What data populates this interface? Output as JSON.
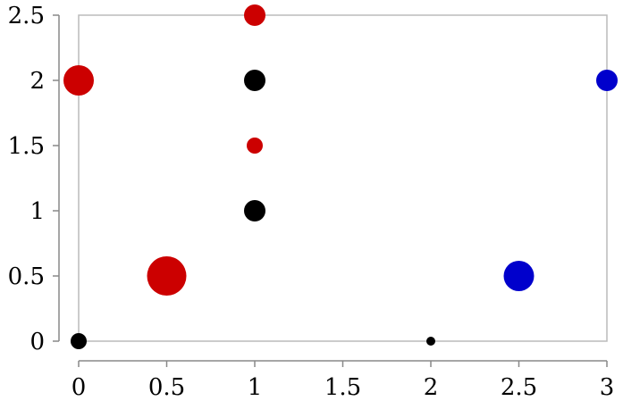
{
  "chart_data": {
    "type": "scatter",
    "title": "",
    "xlabel": "",
    "ylabel": "",
    "xlim": [
      0,
      3
    ],
    "ylim": [
      0,
      2.5
    ],
    "xticks": [
      0,
      0.5,
      1,
      1.5,
      2,
      2.5,
      3
    ],
    "yticks": [
      0,
      0.5,
      1,
      1.5,
      2,
      2.5
    ],
    "xtick_labels": [
      "0",
      "0.5",
      "1",
      "1.5",
      "2",
      "2.5",
      "3"
    ],
    "ytick_labels": [
      "0",
      "0.5",
      "1",
      "1.5",
      "2",
      "2.5"
    ],
    "grid": false,
    "colors": {
      "red": "#cc0000",
      "black": "#000000",
      "blue": "#0000cc",
      "frame": "#bbbbbb",
      "axis": "#888888"
    },
    "points": [
      {
        "x": 0,
        "y": 0,
        "color": "black",
        "size": 2
      },
      {
        "x": 2,
        "y": 0,
        "color": "black",
        "size": 1
      },
      {
        "x": 1,
        "y": 1,
        "color": "black",
        "size": 3
      },
      {
        "x": 1,
        "y": 2,
        "color": "black",
        "size": 3
      },
      {
        "x": 0,
        "y": 2,
        "color": "red",
        "size": 4
      },
      {
        "x": 0.5,
        "y": 0.5,
        "color": "red",
        "size": 5
      },
      {
        "x": 1,
        "y": 1.5,
        "color": "red",
        "size": 2
      },
      {
        "x": 1,
        "y": 2.5,
        "color": "red",
        "size": 3
      },
      {
        "x": 2.5,
        "y": 0.5,
        "color": "blue",
        "size": 4
      },
      {
        "x": 3,
        "y": 2,
        "color": "blue",
        "size": 3
      }
    ]
  }
}
